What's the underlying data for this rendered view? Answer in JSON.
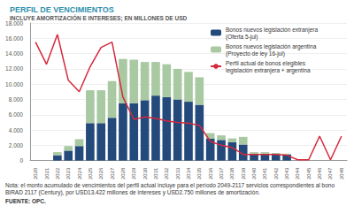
{
  "chart_data": {
    "type": "bar",
    "title": "PERFIL DE VENCIMIENTOS",
    "subtitle": "INCLUYE AMORTIZACIÓN E INTERESES; EN MILLONES DE USD",
    "categories": [
      "2020",
      "2021",
      "2022",
      "2023",
      "2024",
      "2025",
      "2026",
      "2027",
      "2028",
      "2029",
      "2030",
      "2031",
      "2032",
      "2033",
      "2034",
      "2035",
      "2036",
      "2037",
      "2038",
      "2039",
      "2040",
      "2041",
      "2042",
      "2043",
      "2044",
      "2045",
      "2046",
      "2047",
      "2048"
    ],
    "stacked": true,
    "grid": true,
    "legend": "upper right",
    "series": [
      {
        "name": "Bonos nuevos legislación extranjera (Oferta 5-jul)",
        "type": "bar",
        "color": "#234a7b",
        "values": [
          0,
          0,
          700,
          1300,
          1900,
          4900,
          4900,
          5600,
          7500,
          7500,
          7900,
          8500,
          8300,
          8000,
          7700,
          7300,
          2900,
          2700,
          2400,
          2100,
          900,
          900,
          800,
          800,
          0,
          0,
          0,
          0,
          0
        ]
      },
      {
        "name": "Bonos nuevos legislación argentina (Proyecto de ley 16-jul)",
        "type": "bar",
        "color": "#a9c9a2",
        "values": [
          0,
          0,
          400,
          600,
          900,
          4300,
          4300,
          4800,
          5800,
          5700,
          5000,
          4400,
          4300,
          4000,
          3900,
          3600,
          700,
          600,
          500,
          1000,
          200,
          200,
          200,
          100,
          0,
          0,
          0,
          0,
          0
        ]
      },
      {
        "name": "Perfil actual de bonos elegibles legislación extranjera + argentina",
        "type": "line",
        "color": "#d6283c",
        "values": [
          15500,
          12600,
          16500,
          10500,
          9000,
          12300,
          14800,
          15500,
          8300,
          5400,
          5700,
          5500,
          5200,
          5000,
          4900,
          4600,
          2500,
          2000,
          1700,
          800,
          800,
          800,
          800,
          700,
          100,
          100,
          3200,
          100,
          3200
        ]
      }
    ],
    "ylim": [
      0,
      18000
    ],
    "yticks": [
      0,
      {
        "value": 2000,
        "label": "2.000"
      },
      {
        "value": 4000,
        "label": "4.000"
      },
      {
        "value": 6000,
        "label": "6.000"
      },
      {
        "value": 8000,
        "label": "8.000"
      },
      {
        "value": 10000,
        "label": "10.000"
      },
      {
        "value": 12000,
        "label": "12.000"
      },
      {
        "value": 14000,
        "label": "14.000"
      },
      {
        "value": 16000,
        "label": "16.000"
      },
      {
        "value": 18000,
        "label": "18.000"
      }
    ],
    "notes": [
      "Nota: el monto acumulado de vencimientos del perfil actual incluye para el período 2049-2117 servicios correspondientes al bono BIRAD 2117 (Century), por USD13.422 millones de intereses y USD2.750 millones de amortización.",
      "FUENTE: OPC."
    ]
  }
}
